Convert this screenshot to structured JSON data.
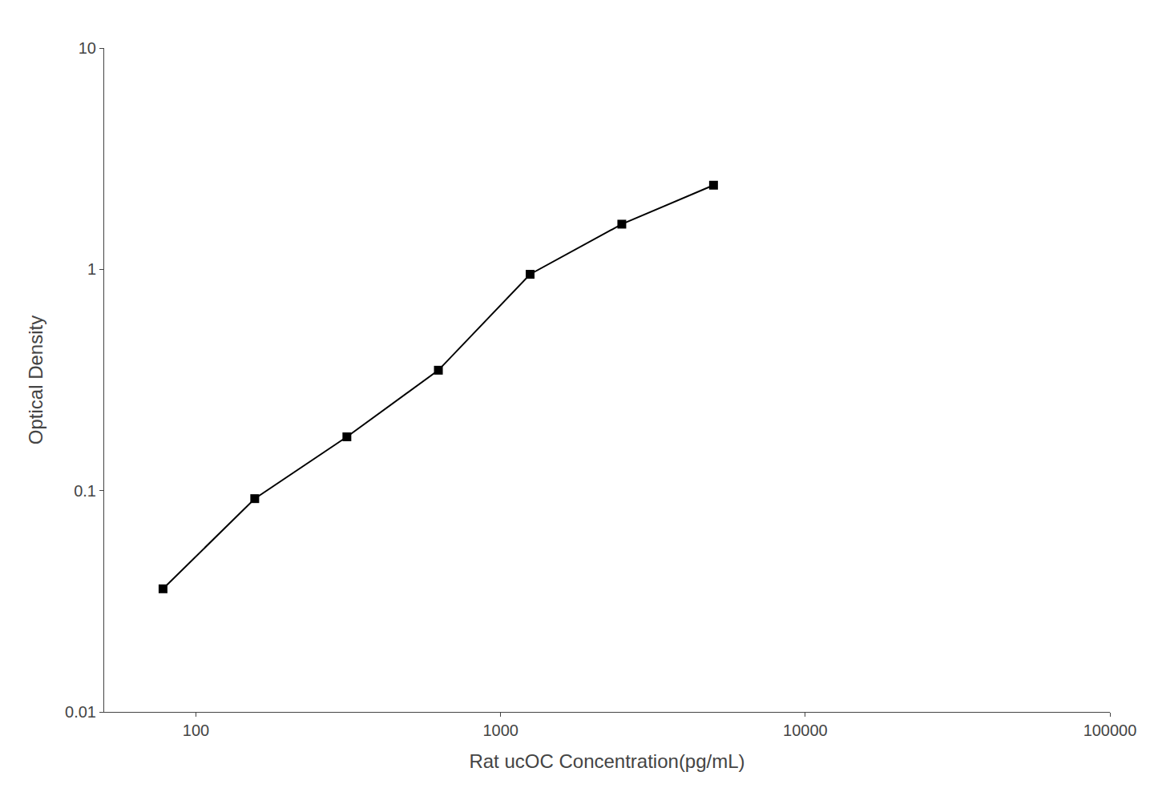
{
  "chart_data": {
    "type": "line",
    "x": [
      78,
      156,
      313,
      625,
      1250,
      2500,
      5000
    ],
    "values": [
      0.036,
      0.092,
      0.175,
      0.35,
      0.95,
      1.6,
      2.4
    ],
    "xlabel": "Rat ucOC Concentration(pg/mL)",
    "ylabel": "Optical Density",
    "xlim": [
      50,
      100000
    ],
    "ylim": [
      0.01,
      10
    ],
    "xticks": [
      100,
      1000,
      10000,
      100000
    ],
    "yticks": [
      0.01,
      0.1,
      1,
      10
    ],
    "log": true,
    "grid": false,
    "color": "#000000",
    "marker": "square"
  }
}
